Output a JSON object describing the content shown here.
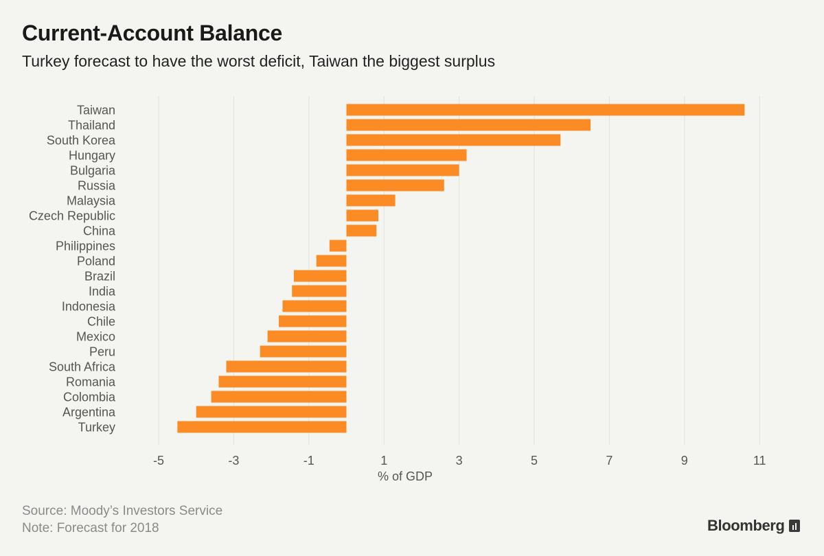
{
  "chart_data": {
    "type": "bar",
    "orientation": "horizontal",
    "title": "Current-Account Balance",
    "subtitle": "Turkey forecast to have the worst deficit, Taiwan the biggest surplus",
    "xlabel": "% of GDP",
    "ylabel": "",
    "xlim": [
      -6,
      12
    ],
    "xticks": [
      -5,
      -3,
      -1,
      1,
      3,
      5,
      7,
      9,
      11
    ],
    "grid": true,
    "bar_color": "#fb8b24",
    "categories": [
      "Taiwan",
      "Thailand",
      "South Korea",
      "Hungary",
      "Bulgaria",
      "Russia",
      "Malaysia",
      "Czech Republic",
      "China",
      "Philippines",
      "Poland",
      "Brazil",
      "India",
      "Indonesia",
      "Chile",
      "Mexico",
      "Peru",
      "South Africa",
      "Romania",
      "Colombia",
      "Argentina",
      "Turkey"
    ],
    "values": [
      10.6,
      6.5,
      5.7,
      3.2,
      3.0,
      2.6,
      1.3,
      0.85,
      0.8,
      -0.45,
      -0.8,
      -1.4,
      -1.45,
      -1.7,
      -1.8,
      -2.1,
      -2.3,
      -3.2,
      -3.4,
      -3.6,
      -4.0,
      -4.5
    ]
  },
  "footer": {
    "source": "Source: Moody’s Investors Service",
    "note": "Note: Forecast for 2018",
    "brand": "Bloomberg"
  },
  "colors": {
    "background": "#f4f4f0",
    "grid": "#e2e2dd",
    "label": "#555555"
  }
}
